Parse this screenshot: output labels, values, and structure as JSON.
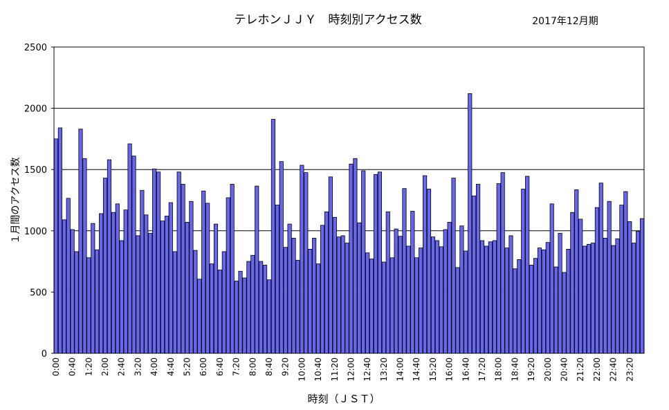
{
  "chart_data": {
    "type": "bar",
    "title": "テレホンＪＪＹ　時刻別アクセス数",
    "subtitle": "2017年12月期",
    "xlabel": "時刻（ＪＳＴ）",
    "ylabel": "１月間のアクセス数",
    "ylim": [
      0,
      2500
    ],
    "yticks": [
      0,
      500,
      1000,
      1500,
      2000,
      2500
    ],
    "grid": true,
    "bar_color": "#6666ee",
    "tick_labels": [
      "0:00",
      "0:40",
      "1:20",
      "2:00",
      "2:40",
      "3:20",
      "4:00",
      "4:40",
      "5:20",
      "6:00",
      "6:40",
      "7:20",
      "8:00",
      "8:40",
      "9:20",
      "10:00",
      "10:40",
      "11:20",
      "12:00",
      "12:40",
      "13:20",
      "14:00",
      "14:40",
      "15:20",
      "16:00",
      "16:40",
      "17:20",
      "18:00",
      "18:40",
      "19:20",
      "20:00",
      "20:40",
      "21:20",
      "22:00",
      "22:40",
      "23:20"
    ],
    "values": [
      1750,
      1840,
      1090,
      1265,
      1010,
      830,
      1830,
      1590,
      780,
      1060,
      845,
      1140,
      1430,
      1580,
      1150,
      1220,
      920,
      1170,
      1710,
      1610,
      960,
      1330,
      1130,
      980,
      1505,
      1480,
      1080,
      1120,
      1230,
      830,
      1480,
      1380,
      1070,
      1240,
      840,
      605,
      1325,
      1225,
      730,
      1055,
      680,
      830,
      1270,
      1380,
      590,
      670,
      615,
      750,
      800,
      1365,
      750,
      720,
      600,
      1910,
      1210,
      1565,
      865,
      1055,
      940,
      760,
      1535,
      1475,
      850,
      940,
      730,
      1045,
      1155,
      1440,
      1110,
      950,
      960,
      900,
      1545,
      1590,
      1065,
      1490,
      820,
      770,
      1460,
      1480,
      745,
      1155,
      780,
      1015,
      955,
      1345,
      875,
      1160,
      780,
      860,
      1450,
      1340,
      950,
      920,
      870,
      1010,
      1070,
      1430,
      700,
      1040,
      835,
      2120,
      1285,
      1380,
      920,
      875,
      910,
      920,
      1385,
      1475,
      860,
      960,
      690,
      765,
      1340,
      1445,
      720,
      775,
      860,
      845,
      905,
      1220,
      705,
      980,
      660,
      850,
      1150,
      1335,
      1095,
      875,
      890,
      900,
      1190,
      1390,
      940,
      1240,
      880,
      935,
      1210,
      1320,
      1075,
      900,
      995,
      1100
    ]
  }
}
